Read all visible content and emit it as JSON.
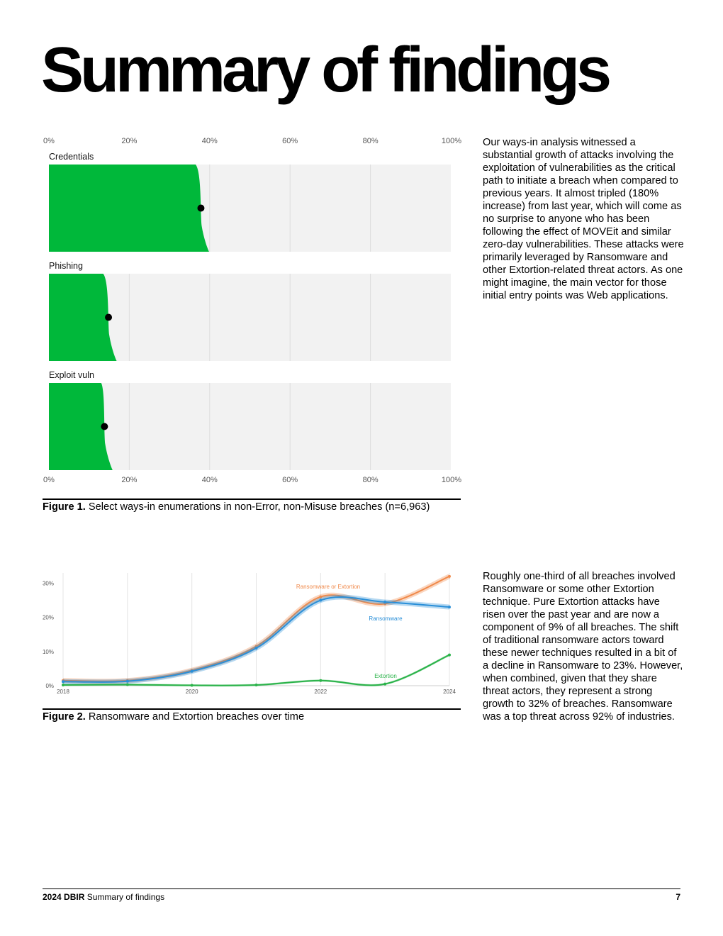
{
  "page": {
    "title": "Summary of findings",
    "paragraph_1": "Our ways-in analysis witnessed a substantial growth of attacks involving the exploitation of vulnerabilities as the critical path to initiate a breach when compared to previous years. It almost tripled (180% increase) from last year, which will come as no surprise to anyone who has been following the effect of MOVEit and similar zero-day vulnerabilities. These attacks were primarily leveraged by Ransomware and other Extortion-related threat actors. As one might imagine, the main vector for those initial entry points was Web applications.",
    "paragraph_2": "Roughly one-third of all breaches involved Ransomware or some other Extortion technique. Pure Extortion attacks have risen over the past year and are now a component of 9% of all breaches. The shift of traditional ransomware actors toward these newer techniques resulted in a bit of a decline in Ransomware to 23%. However, when combined, given that they share threat actors, they represent a strong growth to 32% of breaches. Ransomware was a top threat across 92% of industries."
  },
  "figure1": {
    "label": "Figure 1.",
    "caption": "Select ways-in enumerations in non-Error, non-Misuse breaches (n=6,963)"
  },
  "figure2": {
    "label": "Figure 2.",
    "caption": "Ransomware and Extortion breaches over time"
  },
  "footer": {
    "report": "2024 DBIR",
    "section": "Summary of findings",
    "page_number": "7"
  },
  "colors": {
    "green": "#00b83a",
    "panel_bg": "#f2f2f2",
    "orange": "#f08a4b",
    "blue": "#2a8fd8",
    "extortion_green": "#2bb34a"
  },
  "chart_data": [
    {
      "type": "bar",
      "x_ticks": [
        "0%",
        "20%",
        "40%",
        "60%",
        "80%",
        "100%"
      ],
      "xlim": [
        0,
        100
      ],
      "categories": [
        "Credentials",
        "Phishing",
        "Exploit vuln"
      ],
      "values": [
        38,
        15,
        14
      ],
      "interval_low": [
        36.5,
        13.5,
        13.0
      ],
      "interval_high": [
        39.5,
        16.5,
        15.5
      ]
    },
    {
      "type": "line",
      "x": [
        2018,
        2019,
        2020,
        2021,
        2022,
        2023,
        2024
      ],
      "x_ticks": [
        "2018",
        "2020",
        "2022",
        "2024"
      ],
      "y_ticks": [
        "0%",
        "10%",
        "20%",
        "30%"
      ],
      "ylim": [
        0,
        33
      ],
      "series": [
        {
          "name": "Ransomware or Extortion",
          "values": [
            1.5,
            1.5,
            4.5,
            11.5,
            26,
            24,
            32
          ]
        },
        {
          "name": "Ransomware",
          "values": [
            1.2,
            1.3,
            4.2,
            11,
            25,
            24.5,
            23
          ]
        },
        {
          "name": "Extortion",
          "values": [
            0.2,
            0.3,
            0.1,
            0.2,
            1.5,
            0.5,
            9
          ]
        }
      ]
    }
  ]
}
